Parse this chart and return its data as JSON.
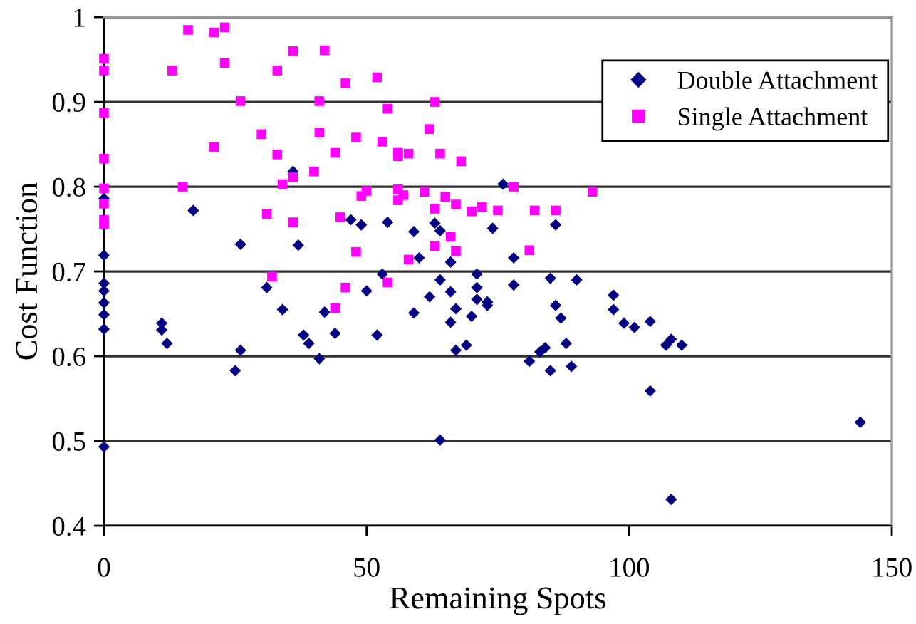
{
  "chart_data": {
    "type": "scatter",
    "xlabel": "Remaining Spots",
    "ylabel": "Cost Function",
    "xlim": [
      0,
      150
    ],
    "xticks": [
      0,
      50,
      100,
      150
    ],
    "ylim": [
      0.4,
      1
    ],
    "yticks": [
      0.4,
      0.5,
      0.6,
      0.7,
      0.8,
      0.9,
      1
    ],
    "grid": "y",
    "legend": "top right",
    "series": [
      {
        "name": "Double Attachment",
        "color": "#000080",
        "marker": "diamond",
        "x": [
          0,
          0,
          0,
          0,
          0,
          0,
          0,
          0,
          11,
          11,
          12,
          17,
          25,
          26,
          26,
          31,
          34,
          36,
          37,
          38,
          39,
          41,
          42,
          44,
          47,
          49,
          50,
          52,
          53,
          54,
          59,
          59,
          60,
          62,
          63,
          64,
          64,
          64,
          66,
          66,
          66,
          67,
          67,
          69,
          70,
          71,
          71,
          71,
          73,
          73,
          74,
          76,
          78,
          78,
          81,
          83,
          84,
          85,
          85,
          86,
          86,
          87,
          88,
          89,
          90,
          97,
          97,
          99,
          101,
          104,
          104,
          107,
          108,
          108,
          110,
          144
        ],
        "values": [
          0.786,
          0.719,
          0.686,
          0.677,
          0.663,
          0.649,
          0.632,
          0.493,
          0.639,
          0.631,
          0.615,
          0.772,
          0.583,
          0.732,
          0.607,
          0.681,
          0.655,
          0.818,
          0.731,
          0.625,
          0.615,
          0.597,
          0.652,
          0.627,
          0.761,
          0.755,
          0.677,
          0.625,
          0.697,
          0.758,
          0.747,
          0.651,
          0.716,
          0.67,
          0.757,
          0.748,
          0.69,
          0.501,
          0.711,
          0.676,
          0.64,
          0.656,
          0.607,
          0.613,
          0.647,
          0.697,
          0.681,
          0.667,
          0.664,
          0.66,
          0.751,
          0.803,
          0.716,
          0.684,
          0.594,
          0.605,
          0.61,
          0.692,
          0.583,
          0.755,
          0.66,
          0.645,
          0.615,
          0.588,
          0.69,
          0.672,
          0.655,
          0.639,
          0.634,
          0.641,
          0.559,
          0.613,
          0.62,
          0.431,
          0.613,
          0.522
        ]
      },
      {
        "name": "Single Attachment",
        "color": "#ff00ff",
        "marker": "square",
        "x": [
          0,
          0,
          0,
          0,
          0,
          0,
          0,
          0,
          13,
          15,
          16,
          21,
          21,
          23,
          23,
          26,
          30,
          31,
          32,
          33,
          33,
          34,
          36,
          36,
          36,
          40,
          41,
          41,
          42,
          44,
          44,
          45,
          46,
          46,
          48,
          48,
          49,
          50,
          52,
          53,
          54,
          54,
          56,
          56,
          56,
          56,
          57,
          58,
          58,
          61,
          62,
          63,
          63,
          63,
          64,
          65,
          66,
          67,
          67,
          68,
          70,
          72,
          75,
          78,
          81,
          82,
          86,
          93
        ],
        "values": [
          0.951,
          0.937,
          0.887,
          0.833,
          0.798,
          0.78,
          0.761,
          0.756,
          0.937,
          0.8,
          0.985,
          0.982,
          0.847,
          0.988,
          0.946,
          0.901,
          0.862,
          0.768,
          0.694,
          0.937,
          0.838,
          0.803,
          0.96,
          0.811,
          0.758,
          0.818,
          0.901,
          0.864,
          0.961,
          0.84,
          0.657,
          0.764,
          0.922,
          0.681,
          0.858,
          0.723,
          0.789,
          0.795,
          0.929,
          0.853,
          0.892,
          0.687,
          0.84,
          0.836,
          0.797,
          0.784,
          0.79,
          0.839,
          0.714,
          0.794,
          0.868,
          0.9,
          0.774,
          0.73,
          0.839,
          0.788,
          0.741,
          0.779,
          0.724,
          0.83,
          0.771,
          0.776,
          0.772,
          0.8,
          0.725,
          0.772,
          0.772,
          0.794
        ]
      }
    ]
  }
}
